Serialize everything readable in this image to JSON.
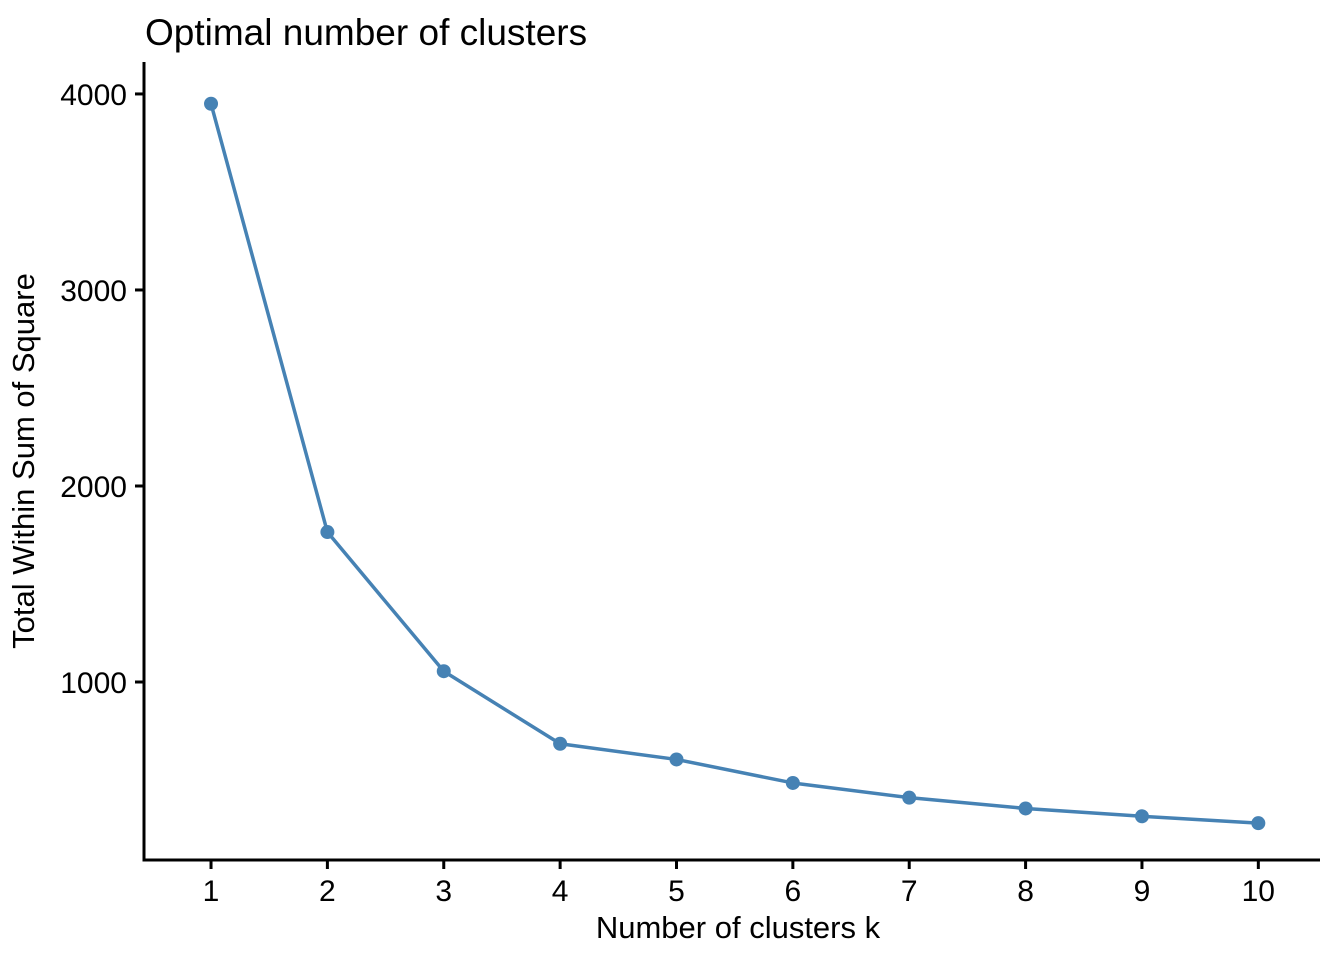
{
  "title": "Optimal number of clusters",
  "chart_data": {
    "type": "line",
    "title": "Optimal number of clusters",
    "xlabel": "Number of clusters k",
    "ylabel": "Total Within Sum of Square",
    "x": [
      1,
      2,
      3,
      4,
      5,
      6,
      7,
      8,
      9,
      10
    ],
    "values": [
      3950,
      1765,
      1055,
      685,
      605,
      485,
      410,
      355,
      315,
      280
    ],
    "x_tick_labels": [
      "1",
      "2",
      "3",
      "4",
      "5",
      "6",
      "7",
      "8",
      "9",
      "10"
    ],
    "y_tick_values": [
      1000,
      2000,
      3000,
      4000
    ],
    "y_tick_labels": [
      "1000",
      "2000",
      "3000",
      "4000"
    ],
    "xlim": [
      0.424,
      10.53
    ],
    "ylim": [
      92,
      4163
    ],
    "grid": false,
    "legend": "none",
    "line_color": "#4682B4",
    "marker": "circle",
    "marker_radius": 7,
    "line_width": 3.5,
    "axis_color": "#000000"
  }
}
